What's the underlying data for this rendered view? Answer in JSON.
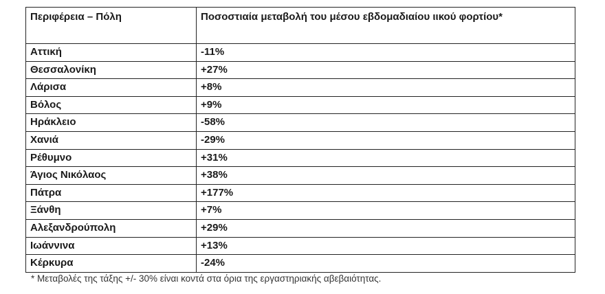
{
  "table": {
    "headers": [
      "Περιφέρεια – Πόλη",
      "Ποσοστιαία μεταβολή του μέσου εβδομαδιαίου ιικού φορτίου*"
    ],
    "rows": [
      {
        "city": "Αττική",
        "change": "-11%"
      },
      {
        "city": "Θεσσαλονίκη",
        "change": "+27%"
      },
      {
        "city": "Λάρισα",
        "change": "+8%"
      },
      {
        "city": "Βόλος",
        "change": "+9%"
      },
      {
        "city": "Ηράκλειο",
        "change": "-58%"
      },
      {
        "city": "Χανιά",
        "change": "-29%"
      },
      {
        "city": "Ρέθυμνο",
        "change": "+31%"
      },
      {
        "city": "Άγιος Νικόλαος",
        "change": "+38%"
      },
      {
        "city": "Πάτρα",
        "change": "+177%"
      },
      {
        "city": "Ξάνθη",
        "change": "+7%"
      },
      {
        "city": "Αλεξανδρούπολη",
        "change": "+29%"
      },
      {
        "city": "Ιωάννινα",
        "change": "+13%"
      },
      {
        "city": "Κέρκυρα",
        "change": "-24%"
      }
    ]
  },
  "footnote": "* Μεταβολές της τάξης +/- 30% είναι κοντά στα όρια της εργαστηριακής αβεβαιότητας."
}
